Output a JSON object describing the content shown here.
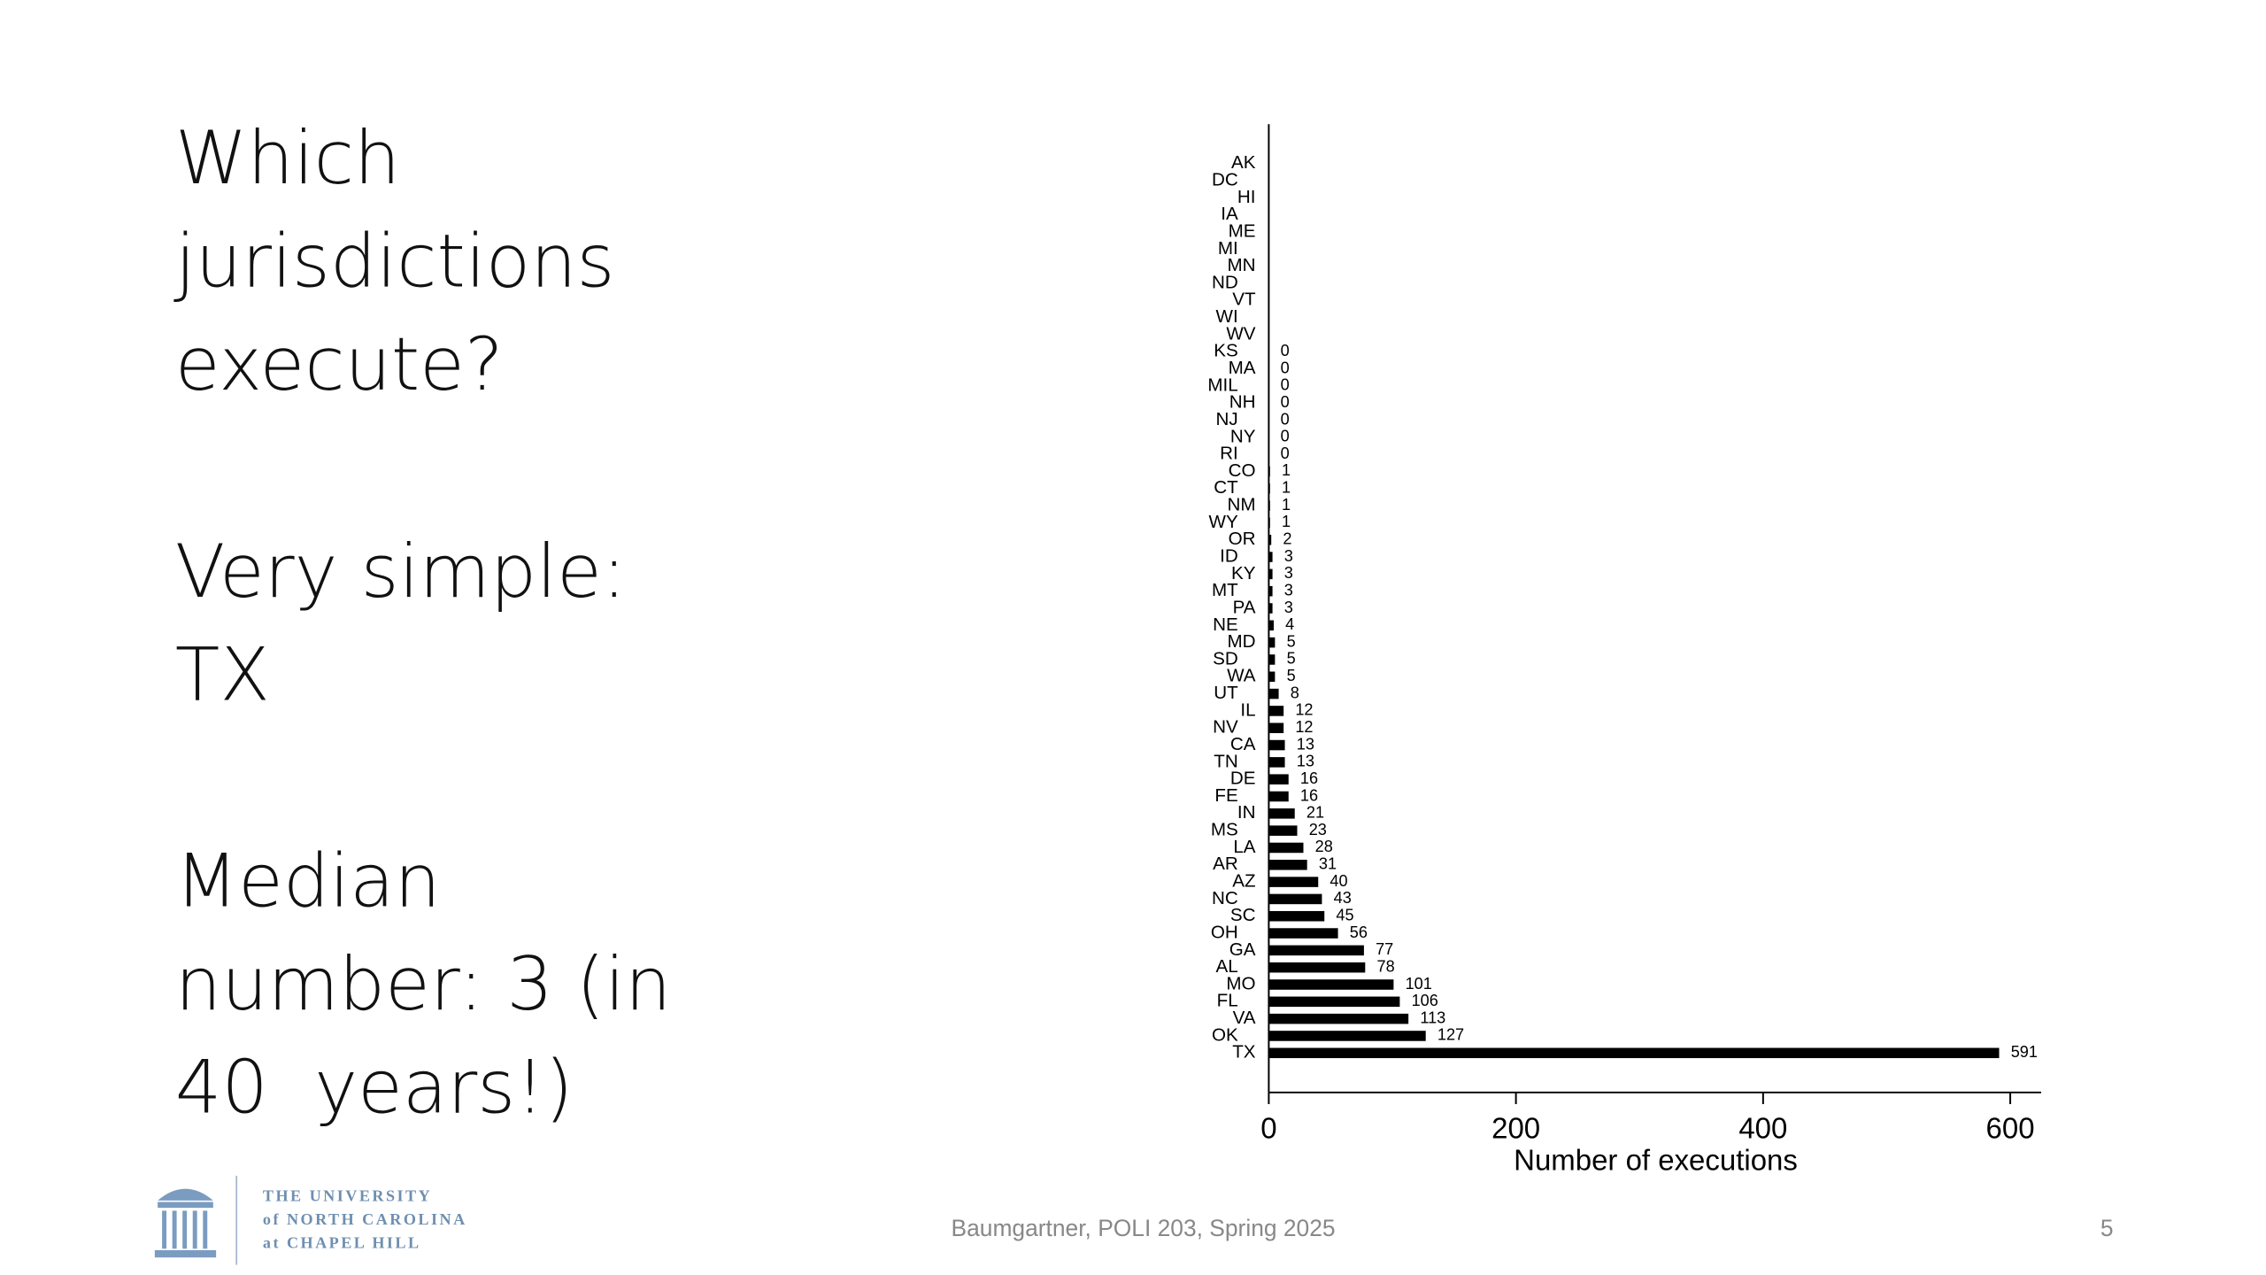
{
  "slide": {
    "text_blocks": [
      [
        "Which",
        "jurisdictions",
        "execute?"
      ],
      [
        "Very simple:",
        "TX"
      ],
      [
        "Median",
        "number: 3 (in",
        "40  years!)"
      ]
    ],
    "footer": "Baumgartner, POLI 203, Spring 2025",
    "page_number": "5",
    "logo_lines": [
      "THE UNIVERSITY",
      "of NORTH CAROLINA",
      "at CHAPEL HILL"
    ]
  },
  "chart_data": {
    "type": "bar",
    "orientation": "horizontal",
    "x_label": "Number of executions",
    "categories": [
      "AK",
      "DC",
      "HI",
      "IA",
      "ME",
      "MI",
      "MN",
      "ND",
      "VT",
      "WI",
      "WV",
      "KS",
      "MA",
      "MIL",
      "NH",
      "NJ",
      "NY",
      "RI",
      "CO",
      "CT",
      "NM",
      "WY",
      "OR",
      "ID",
      "KY",
      "MT",
      "PA",
      "NE",
      "MD",
      "SD",
      "WA",
      "UT",
      "IL",
      "NV",
      "CA",
      "TN",
      "DE",
      "FE",
      "IN",
      "MS",
      "LA",
      "AR",
      "AZ",
      "NC",
      "SC",
      "OH",
      "GA",
      "AL",
      "MO",
      "FL",
      "VA",
      "OK",
      "TX"
    ],
    "values": [
      null,
      null,
      null,
      null,
      null,
      null,
      null,
      null,
      null,
      null,
      null,
      0,
      0,
      0,
      0,
      0,
      0,
      0,
      1,
      1,
      1,
      1,
      2,
      3,
      3,
      3,
      3,
      4,
      5,
      5,
      5,
      8,
      12,
      12,
      13,
      13,
      16,
      16,
      21,
      23,
      28,
      31,
      40,
      43,
      45,
      56,
      77,
      78,
      101,
      106,
      113,
      127,
      591
    ],
    "color": "#000000",
    "xlim": [
      0,
      625
    ],
    "xticks": [
      0,
      200,
      400,
      600
    ]
  }
}
